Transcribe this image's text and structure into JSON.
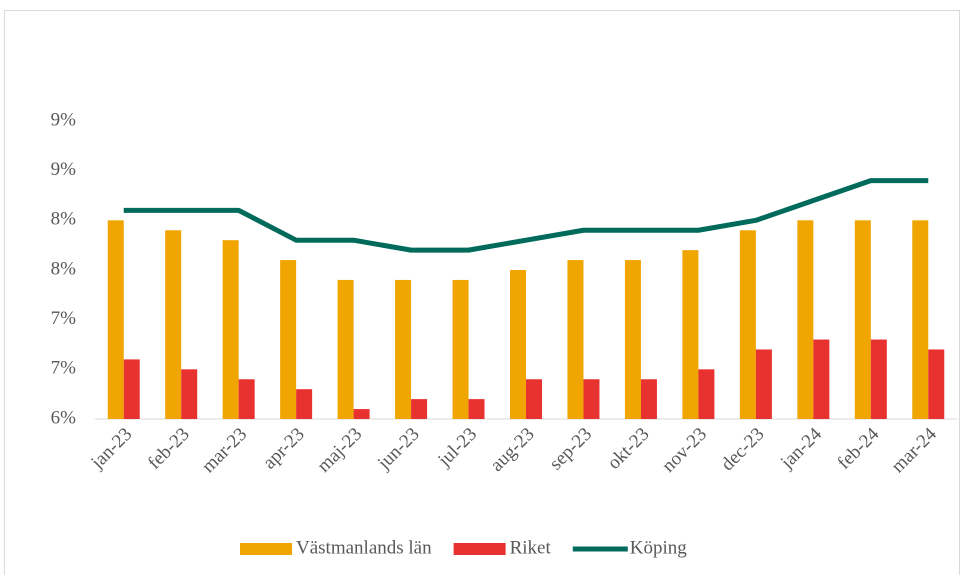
{
  "chart_data": {
    "type": "bar",
    "categories": [
      "jan-23",
      "feb-23",
      "mar-23",
      "apr-23",
      "maj-23",
      "jun-23",
      "jul-23",
      "aug-23",
      "sep-23",
      "okt-23",
      "nov-23",
      "dec-23",
      "jan-24",
      "feb-24",
      "mar-24"
    ],
    "series": [
      {
        "name": "Västmanlands län",
        "type": "bar",
        "color": "#f0a500",
        "values": [
          8.0,
          7.9,
          7.8,
          7.6,
          7.4,
          7.4,
          7.4,
          7.5,
          7.6,
          7.6,
          7.7,
          7.9,
          8.0,
          8.0,
          8.0
        ]
      },
      {
        "name": "Riket",
        "type": "bar",
        "color": "#e8322f",
        "values": [
          6.6,
          6.5,
          6.4,
          6.3,
          6.1,
          6.2,
          6.2,
          6.4,
          6.4,
          6.4,
          6.5,
          6.7,
          6.8,
          6.8,
          6.7
        ]
      },
      {
        "name": "Köping",
        "type": "line",
        "color": "#006b5b",
        "values": [
          8.1,
          8.1,
          8.1,
          7.8,
          7.8,
          7.7,
          7.7,
          7.8,
          7.9,
          7.9,
          7.9,
          8.0,
          8.2,
          8.4,
          8.4
        ]
      }
    ],
    "ylim": [
      6,
      9
    ],
    "yticks": [
      {
        "value": 6,
        "label": "6%"
      },
      {
        "value": 6.5,
        "label": "7%"
      },
      {
        "value": 7,
        "label": "7%"
      },
      {
        "value": 7.5,
        "label": "8%"
      },
      {
        "value": 8,
        "label": "8%"
      },
      {
        "value": 8.5,
        "label": "9%"
      },
      {
        "value": 9,
        "label": "9%"
      }
    ],
    "grid": false,
    "legend": "bottom"
  }
}
